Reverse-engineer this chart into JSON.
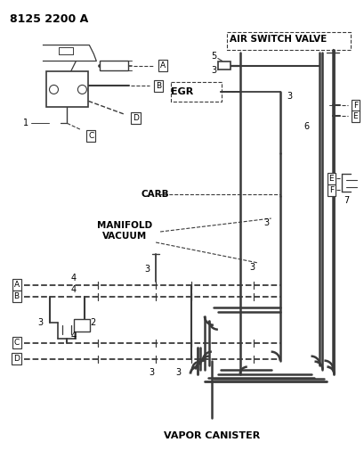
{
  "title": "8125 2200 A",
  "bg": "#ffffff",
  "lc": "#3a3a3a",
  "figsize": [
    4.1,
    5.33
  ],
  "dpi": 100,
  "labels": {
    "air_switch_valve": "AIR SWITCH VALVE",
    "egr": "EGR",
    "carb": "CARB",
    "manifold_vacuum": "MANIFOLD\nVACUUM",
    "vapor_canister": "VAPOR CANISTER",
    "title": "8125 2200 A"
  }
}
